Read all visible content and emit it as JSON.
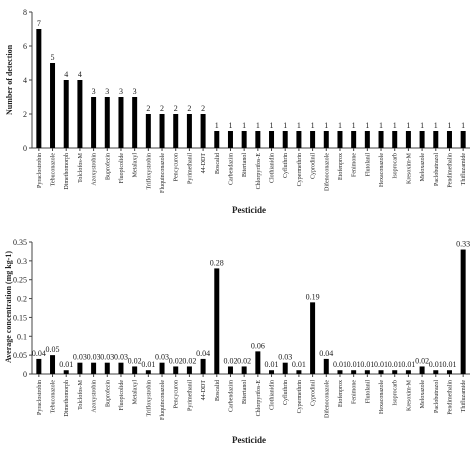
{
  "chart_data": [
    {
      "type": "bar",
      "xlabel": "Pesticide",
      "ylabel": "Number of detection",
      "ylim": [
        0,
        8
      ],
      "yticks": [
        "0",
        "2",
        "4",
        "6",
        "8"
      ],
      "categories": [
        "Pyraclostrobin",
        "Tebuconazole",
        "Dimethomorph",
        "Tolclofos-M",
        "Azoxystrobin",
        "Buprofezin",
        "Fluopicolide",
        "Metalaxyl",
        "Trifloxystrobin",
        "Fluquinconazole",
        "Pencycuron",
        "Pyrimethanil",
        "44-DDT",
        "Boscalid",
        "Carbendazim",
        "Bitertanol",
        "Chlorpyrifos-E",
        "Clothianidin",
        "Cyfluthrin",
        "Cypermethrin",
        "Cyprodinil",
        "Difenoconazole",
        "Etofenprox",
        "Fenimone",
        "Flutolanil",
        "Hexaconazole",
        "Isoprocarb",
        "Kresoxim-M",
        "Meloxazole",
        "Paclobutrazol",
        "Pendimethalin",
        "Thifluzamide"
      ],
      "values": [
        7,
        5,
        4,
        4,
        3,
        3,
        3,
        3,
        2,
        2,
        2,
        2,
        2,
        1,
        1,
        1,
        1,
        1,
        1,
        1,
        1,
        1,
        1,
        1,
        1,
        1,
        1,
        1,
        1,
        1,
        1,
        1
      ],
      "data_labels": [
        "7",
        "5",
        "4",
        "4",
        "3",
        "3",
        "3",
        "3",
        "2",
        "2",
        "2",
        "2",
        "2",
        "1",
        "1",
        "1",
        "1",
        "1",
        "1",
        "1",
        "1",
        "1",
        "1",
        "1",
        "1",
        "1",
        "1",
        "1",
        "1",
        "1",
        "1",
        "1"
      ]
    },
    {
      "type": "bar",
      "xlabel": "Pesticide",
      "ylabel": "Average concentration (mg kg-1)",
      "ylim": [
        0,
        0.35
      ],
      "yticks": [
        "0",
        "0.05",
        "0.1",
        "0.15",
        "0.2",
        "0.25",
        "0.3",
        "0.35"
      ],
      "categories": [
        "Pyraclostrobin",
        "Tebuconazole",
        "Dimethomorph",
        "Tolclofos-M",
        "Azoxystrobin",
        "Buprofezin",
        "Fluopicolide",
        "Metalaxyl",
        "Trifloxystrobin",
        "Fluquinconazole",
        "Pencycuron",
        "Pyrimethanil",
        "44-DDT",
        "Boscalid",
        "Carbendazim",
        "Bitertanol",
        "Chlorpyrifos-E",
        "Clothianidin",
        "Cyfluthrin",
        "Cypermethrin",
        "Cyprodinil",
        "Difenoconazole",
        "Etofenprox",
        "Fenimone",
        "Flutolanil",
        "Hexaconazole",
        "Isoprocarb",
        "Kresoxim-M",
        "Meloxazole",
        "Paclobutrazol",
        "Pendimethalin",
        "Thifluzamide"
      ],
      "values": [
        0.04,
        0.05,
        0.01,
        0.03,
        0.03,
        0.03,
        0.03,
        0.02,
        0.01,
        0.03,
        0.02,
        0.02,
        0.04,
        0.28,
        0.02,
        0.02,
        0.06,
        0.01,
        0.03,
        0.01,
        0.19,
        0.04,
        0.01,
        0.01,
        0.01,
        0.01,
        0.01,
        0.01,
        0.02,
        0.01,
        0.01,
        0.33
      ],
      "data_labels": [
        "0.04",
        "0.05",
        "0.01",
        "0.03",
        "0.03",
        "0.03",
        "0.03",
        "0.02",
        "0.01",
        "0.03",
        "0.02",
        "0.02",
        "0.04",
        "0.28",
        "0.02",
        "0.02",
        "0.06",
        "0.01",
        "0.03",
        "0.01",
        "0.19",
        "0.04",
        "0.01",
        "0.01",
        "0.01",
        "0.01",
        "0.01",
        "0.01",
        "0.02",
        "0.01",
        "0.01",
        "0.33"
      ]
    }
  ]
}
